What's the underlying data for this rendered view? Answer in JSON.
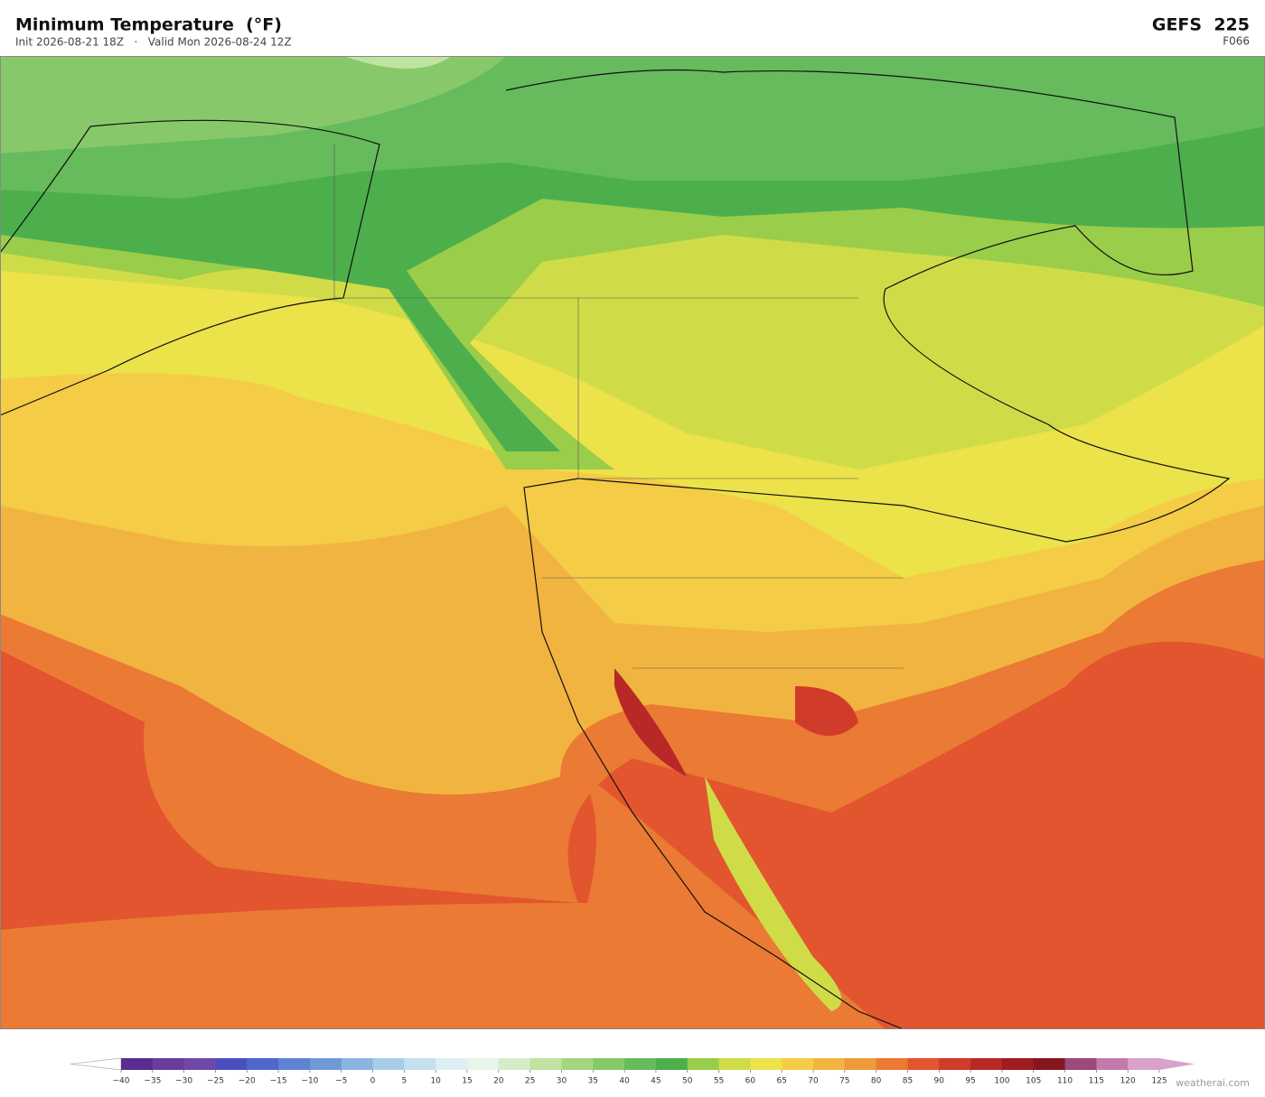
{
  "header": {
    "title": "Minimum Temperature  (°F)",
    "subtitle": "Init 2026-08-21 18Z   ·   Valid Mon 2026-08-24 12Z",
    "model": "GEFS  225",
    "forecast_hour": "F066"
  },
  "colorbar": {
    "ticks": [
      {
        "value": -40,
        "label": "−40"
      },
      {
        "value": -35,
        "label": "−35"
      },
      {
        "value": -30,
        "label": "−30"
      },
      {
        "value": -25,
        "label": "−25"
      },
      {
        "value": -20,
        "label": "−20"
      },
      {
        "value": -15,
        "label": "−15"
      },
      {
        "value": -10,
        "label": "−10"
      },
      {
        "value": -5,
        "label": "−5"
      },
      0,
      5,
      10,
      15,
      20,
      25,
      30,
      35,
      40,
      45,
      50,
      55,
      60,
      65,
      70,
      75,
      80,
      85,
      90,
      95,
      100,
      105,
      110,
      115,
      120,
      125
    ],
    "colors": [
      "#5b2c8f",
      "#6a3d9a",
      "#7048a8",
      "#4a4fc0",
      "#4f66cc",
      "#5f82d2",
      "#6e9bd6",
      "#8bb5de",
      "#a8cde8",
      "#c4e0ee",
      "#dceff2",
      "#e8f5ea",
      "#d4edc9",
      "#bfe3a0",
      "#a3d67f",
      "#87c96a",
      "#66bb5c",
      "#4caf4c",
      "#9acd4a",
      "#cfdc48",
      "#ece24a",
      "#f4cc45",
      "#f2b440",
      "#ef9a3a",
      "#ea7a34",
      "#e2552e",
      "#d13b2a",
      "#b82826",
      "#9e1c22",
      "#85161e",
      "#9c4a7a",
      "#c27aac",
      "#d8a2cc"
    ]
  },
  "credit": "weatherai.com"
}
